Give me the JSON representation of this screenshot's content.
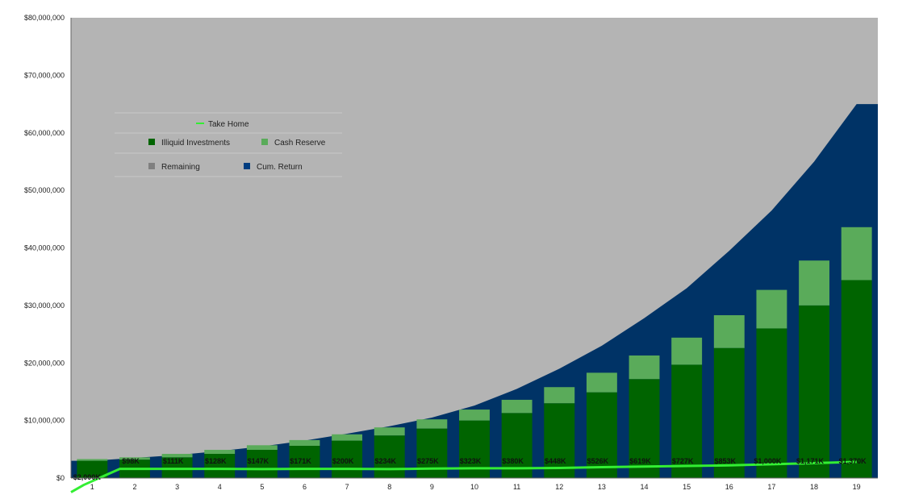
{
  "chart_data": {
    "type": "bar",
    "title": "",
    "xlabel": "",
    "ylabel": "",
    "ylim": [
      0,
      80000000
    ],
    "y_tick_labels": [
      "$80,000,000",
      "$70,000,000",
      "$60,000,000",
      "$50,000,000",
      "$40,000,000",
      "$30,000,000",
      "$20,000,000",
      "$10,000,000",
      "$0"
    ],
    "categories": [
      "1",
      "2",
      "3",
      "4",
      "5",
      "6",
      "7",
      "8",
      "9",
      "10",
      "11",
      "12",
      "13",
      "14",
      "15",
      "16",
      "17",
      "18",
      "19"
    ],
    "legend_position": "upper-left",
    "grid": false,
    "colors": {
      "remaining": "#b4b4b4",
      "cum_return": "#003366",
      "illiquid": "#006400",
      "cash_reserve": "#5aab5a",
      "take_home": "#33ee33"
    },
    "series": [
      {
        "name": "Remaining",
        "kind": "area",
        "values": [
          80000000,
          80000000,
          80000000,
          80000000,
          80000000,
          80000000,
          80000000,
          80000000,
          80000000,
          80000000,
          80000000,
          80000000,
          80000000,
          80000000,
          80000000,
          80000000,
          80000000,
          80000000,
          80000000
        ]
      },
      {
        "name": "Cum. Return",
        "kind": "area",
        "values": [
          3000000,
          3500000,
          4000000,
          4700000,
          5500000,
          6500000,
          7700000,
          9000000,
          10500000,
          12600000,
          15500000,
          19000000,
          23000000,
          27800000,
          33000000,
          39500000,
          46500000,
          55000000,
          65000000
        ]
      },
      {
        "name": "Illiquid Investments",
        "kind": "bar",
        "values": [
          3000000,
          3200000,
          3600000,
          4200000,
          4900000,
          5600000,
          6500000,
          7400000,
          8600000,
          10000000,
          11300000,
          13000000,
          14900000,
          17200000,
          19700000,
          22600000,
          26000000,
          30000000,
          34400000
        ]
      },
      {
        "name": "Cash Reserve",
        "kind": "bar-stacked",
        "values": [
          300000,
          400000,
          600000,
          700000,
          800000,
          1000000,
          1100000,
          1400000,
          1600000,
          1900000,
          2300000,
          2800000,
          3400000,
          4100000,
          4700000,
          5700000,
          6700000,
          7800000,
          9200000
        ]
      },
      {
        "name": "Take Home",
        "kind": "line",
        "values": [
          -1200000,
          1600000,
          1600000,
          1600000,
          1550000,
          1600000,
          1600000,
          1550000,
          1650000,
          1700000,
          1700000,
          1750000,
          1900000,
          2000000,
          2100000,
          2200000,
          2400000,
          2600000,
          2800000
        ]
      }
    ],
    "data_labels": [
      "-$2,000K",
      "$98K",
      "$111K",
      "$128K",
      "$147K",
      "$171K",
      "$200K",
      "$234K",
      "$275K",
      "$323K",
      "$380K",
      "$448K",
      "$526K",
      "$619K",
      "$727K",
      "$853K",
      "$1,000K",
      "$1,171K",
      "$1,370K"
    ]
  }
}
